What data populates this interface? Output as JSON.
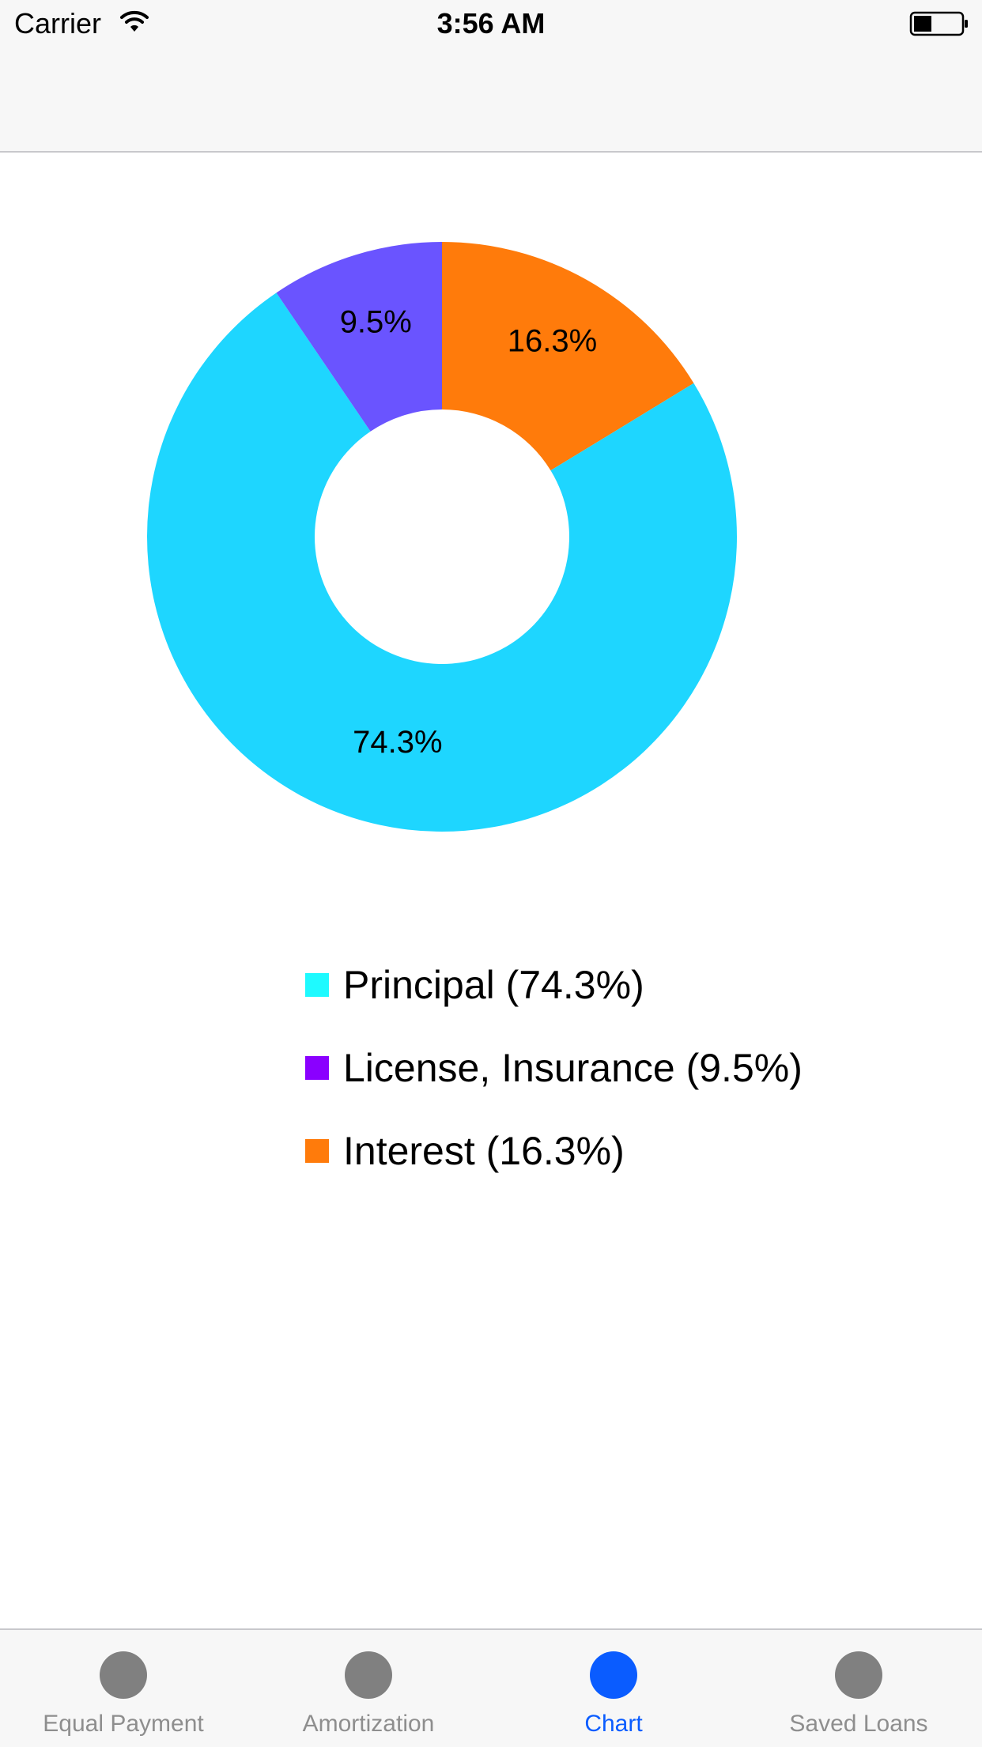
{
  "status_bar": {
    "carrier": "Carrier",
    "time": "3:56 AM",
    "wifi_icon": "wifi-icon",
    "battery_icon": "battery-icon"
  },
  "chart_data": {
    "type": "pie",
    "title": "",
    "slices": [
      {
        "name": "Principal (74.3%)",
        "value": 74.3,
        "label": "74.3%",
        "color": "#1ed6ff",
        "legend_color": "#1efaff"
      },
      {
        "name": "License, Insurance (9.5%)",
        "value": 9.5,
        "label": "9.5%",
        "color": "#6a54ff",
        "legend_color": "#8a00ff"
      },
      {
        "name": "Interest (16.3%)",
        "value": 16.3,
        "label": "16.3%",
        "color": "#ff7b0b",
        "legend_color": "#ff7b0b"
      }
    ],
    "legend_position": "bottom"
  },
  "tab_bar": {
    "tabs": [
      {
        "label": "Equal Payment",
        "selected": false,
        "icon": "circle-icon"
      },
      {
        "label": "Amortization",
        "selected": false,
        "icon": "circle-icon"
      },
      {
        "label": "Chart",
        "selected": true,
        "icon": "circle-icon"
      },
      {
        "label": "Saved Loans",
        "selected": false,
        "icon": "circle-icon"
      }
    ],
    "active_color": "#0a5cff",
    "inactive_color": "#808080",
    "inactive_label_color": "#8e8e8e"
  }
}
